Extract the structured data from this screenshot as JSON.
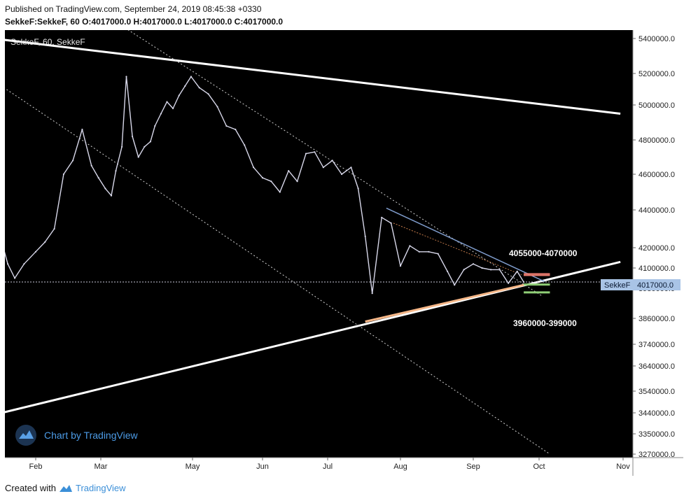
{
  "header": {
    "published": "Published on TradingView.com, September 24, 2019 08:45:38 +0330",
    "symbol": "SekkeF:SekkeF, 60",
    "o_label": "O:",
    "o_value": "4017000.0",
    "h_label": "H:",
    "h_value": "4017000.0",
    "l_label": "L:",
    "l_value": "4017000.0",
    "c_label": "C:",
    "c_value": "4017000.0"
  },
  "footer": {
    "created_with": "Created with",
    "brand": "TradingView"
  },
  "colors": {
    "background": "#000000",
    "price": "#d8d8ea",
    "trendline_white": "#ffffff",
    "support_orange": "#f6b788",
    "resistance_blue": "#7f9ccc",
    "resistance_zone": "#e87a6e",
    "support_zone": "#8fce76",
    "current_price_tag": "#a9c4e6"
  },
  "chart_data": {
    "type": "line",
    "title": "SekkeF, 60, SekkeF",
    "watermark": "Chart by TradingView",
    "x_tick_labels": [
      "Feb",
      "Mar",
      "May",
      "Jun",
      "Jul",
      "Aug",
      "Sep",
      "Oct",
      "Nov"
    ],
    "x_ticks": [
      "2019-02-01",
      "2019-03-01",
      "2019-05-01",
      "2019-06-01",
      "2019-07-01",
      "2019-08-01",
      "2019-09-01",
      "2019-10-01",
      "2019-11-01"
    ],
    "xlim": [
      "2019-01-01",
      "2019-11-01"
    ],
    "y_tick_labels": [
      "5400000.0",
      "5200000.0",
      "5000000.0",
      "4800000.0",
      "4600000.0",
      "4400000.0",
      "4200000.0",
      "4100000.0",
      "3980000.0",
      "3860000.0",
      "3740000.0",
      "3640000.0",
      "3540000.0",
      "3440000.0",
      "3350000.0",
      "3270000.0"
    ],
    "y_ticks": [
      5400000,
      5200000,
      5000000,
      4800000,
      4600000,
      4400000,
      4200000,
      4100000,
      3980000,
      3860000,
      3740000,
      3640000,
      3540000,
      3440000,
      3350000,
      3270000
    ],
    "ylim": [
      3250000,
      5450000
    ],
    "log_scale": true,
    "grid": false,
    "last_price_label": "SekkeF",
    "last_price_value": "4017000.0",
    "last_price": 4017000,
    "series": [
      {
        "name": "SekkeF",
        "x": [
          "2019-01-01",
          "2019-01-05",
          "2019-01-09",
          "2019-01-13",
          "2019-01-17",
          "2019-01-20",
          "2019-01-23",
          "2019-01-27",
          "2019-02-01",
          "2019-02-05",
          "2019-02-09",
          "2019-02-13",
          "2019-02-17",
          "2019-02-21",
          "2019-02-25",
          "2019-02-28",
          "2019-03-04",
          "2019-03-08",
          "2019-03-11",
          "2019-03-15",
          "2019-03-18",
          "2019-03-22",
          "2019-03-26",
          "2019-03-30",
          "2019-04-03",
          "2019-04-06",
          "2019-04-10",
          "2019-04-14",
          "2019-04-18",
          "2019-04-22",
          "2019-04-26",
          "2019-04-30",
          "2019-05-04",
          "2019-05-08",
          "2019-05-12",
          "2019-05-16",
          "2019-05-20",
          "2019-05-24",
          "2019-05-28",
          "2019-06-01",
          "2019-06-05",
          "2019-06-09",
          "2019-06-13",
          "2019-06-17",
          "2019-06-21",
          "2019-06-25",
          "2019-06-29",
          "2019-07-03",
          "2019-07-07",
          "2019-07-11",
          "2019-07-14",
          "2019-07-17",
          "2019-07-20",
          "2019-07-24",
          "2019-07-28",
          "2019-08-01",
          "2019-08-05",
          "2019-08-09",
          "2019-08-13",
          "2019-08-17",
          "2019-08-21",
          "2019-08-24",
          "2019-08-28",
          "2019-09-01",
          "2019-09-05",
          "2019-09-09",
          "2019-09-13",
          "2019-09-17",
          "2019-09-21",
          "2019-09-24"
        ],
        "values": [
          3990000,
          4050000,
          4090000,
          4200000,
          4250000,
          4120000,
          4040000,
          4120000,
          4180000,
          4230000,
          4300000,
          4600000,
          4680000,
          4860000,
          4650000,
          4580000,
          4520000,
          4480000,
          4620000,
          4760000,
          5180000,
          4820000,
          4700000,
          4760000,
          4790000,
          4880000,
          4950000,
          5020000,
          4980000,
          5060000,
          5120000,
          5180000,
          5110000,
          5070000,
          4990000,
          4880000,
          4860000,
          4770000,
          4640000,
          4580000,
          4560000,
          4500000,
          4620000,
          4560000,
          4720000,
          4730000,
          4640000,
          4680000,
          4600000,
          4640000,
          4520000,
          4260000,
          3960000,
          4360000,
          4330000,
          4110000,
          4210000,
          4180000,
          4180000,
          4170000,
          4080000,
          4000000,
          4090000,
          4120000,
          4100000,
          4090000,
          4090000,
          4010000,
          4080000,
          4017000
        ]
      }
    ],
    "annotations": [
      {
        "text": "4055000-4070000",
        "kind": "resistance zone",
        "low": 4055000,
        "high": 4070000
      },
      {
        "text": "3960000-399000",
        "kind": "support zone"
      }
    ]
  }
}
